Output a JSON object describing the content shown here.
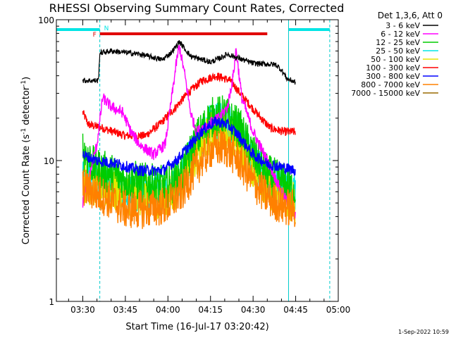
{
  "chart_data": {
    "type": "line",
    "title": "RHESSI Observing Summary Count Rates, Corrected",
    "xlabel": "Start Time (16-Jul-17 03:20:42)",
    "ylabel_main": "Corrected Count Rate (s",
    "ylabel_sup": "-1",
    "ylabel_tail": " detector",
    "ylabel_end": ")",
    "y_scale": "log",
    "ylim": [
      1,
      100
    ],
    "xlim_minutes": [
      "03:20:42",
      "05:00:00"
    ],
    "x_ticks": [
      "03:30",
      "03:45",
      "04:00",
      "04:15",
      "04:30",
      "04:45",
      "05:00"
    ],
    "y_ticks": [
      "1",
      "10",
      "100"
    ],
    "legend_header": "Det 1,3,6, Att 0",
    "legend_position": "right",
    "timestamp": "1-Sep-2022 10:59",
    "flags": [
      {
        "label": "N",
        "color": "#00e5e5",
        "segments": [
          [
            "03:20:42",
            "03:36:00"
          ],
          [
            "04:42:30",
            "04:57:00"
          ]
        ]
      },
      {
        "label": "F",
        "color": "#e00000",
        "segments": [
          [
            "03:36:00",
            "04:35:00"
          ]
        ]
      }
    ],
    "night_markers": [
      "03:36:00",
      "04:42:30",
      "04:57:00"
    ],
    "series": [
      {
        "name": "3 - 6 keV",
        "color": "#000000",
        "points": [
          [
            "03:30:00",
            37
          ],
          [
            "03:35:30",
            37
          ],
          [
            "03:36:00",
            58
          ],
          [
            "03:40:00",
            60
          ],
          [
            "03:50:00",
            57
          ],
          [
            "03:58:00",
            52
          ],
          [
            "04:01:00",
            58
          ],
          [
            "04:03:00",
            65
          ],
          [
            "04:04:00",
            70
          ],
          [
            "04:06:00",
            62
          ],
          [
            "04:08:00",
            55
          ],
          [
            "04:15:00",
            50
          ],
          [
            "04:18:00",
            53
          ],
          [
            "04:21:00",
            57
          ],
          [
            "04:24:00",
            54
          ],
          [
            "04:30:00",
            49
          ],
          [
            "04:38:00",
            48
          ],
          [
            "04:40:00",
            44
          ],
          [
            "04:42:00",
            38
          ],
          [
            "04:45:00",
            36
          ]
        ]
      },
      {
        "name": "6 - 12 keV",
        "color": "#ff00ff",
        "points": [
          [
            "03:30:00",
            5
          ],
          [
            "03:31:00",
            6
          ],
          [
            "03:35:00",
            13
          ],
          [
            "03:37:00",
            28
          ],
          [
            "03:40:00",
            24
          ],
          [
            "03:44:00",
            22
          ],
          [
            "03:47:00",
            16
          ],
          [
            "03:50:00",
            13
          ],
          [
            "03:55:00",
            11
          ],
          [
            "03:59:00",
            13
          ],
          [
            "04:01:00",
            25
          ],
          [
            "04:03:00",
            50
          ],
          [
            "04:04:00",
            65
          ],
          [
            "04:06:00",
            40
          ],
          [
            "04:08:00",
            22
          ],
          [
            "04:10:00",
            16
          ],
          [
            "04:14:00",
            18
          ],
          [
            "04:18:00",
            20
          ],
          [
            "04:21:00",
            24
          ],
          [
            "04:23:00",
            40
          ],
          [
            "04:24:00",
            62
          ],
          [
            "04:26:00",
            28
          ],
          [
            "04:30:00",
            16
          ],
          [
            "04:35:00",
            10
          ],
          [
            "04:40:00",
            6
          ],
          [
            "04:45:00",
            4
          ]
        ]
      },
      {
        "name": "12 - 25 keV",
        "color": "#00cc00",
        "points": [
          [
            "03:30:00",
            12
          ],
          [
            "03:34:00",
            9
          ],
          [
            "03:40:00",
            8
          ],
          [
            "03:50:00",
            7
          ],
          [
            "04:00:00",
            6.5
          ],
          [
            "04:05:00",
            8
          ],
          [
            "04:10:00",
            14
          ],
          [
            "04:15:00",
            20
          ],
          [
            "04:20:00",
            21
          ],
          [
            "04:25:00",
            17
          ],
          [
            "04:30:00",
            11
          ],
          [
            "04:35:00",
            8
          ],
          [
            "04:40:00",
            7
          ],
          [
            "04:45:00",
            6
          ]
        ]
      },
      {
        "name": "25 - 50 keV",
        "color": "#00e5e5",
        "points": [
          [
            "03:30:00",
            7.5
          ],
          [
            "03:40:00",
            6.5
          ],
          [
            "03:50:00",
            6
          ],
          [
            "04:00:00",
            6
          ],
          [
            "04:05:00",
            8
          ],
          [
            "04:10:00",
            13
          ],
          [
            "04:15:00",
            19
          ],
          [
            "04:20:00",
            20
          ],
          [
            "04:25:00",
            15
          ],
          [
            "04:30:00",
            10
          ],
          [
            "04:35:00",
            7.5
          ],
          [
            "04:40:00",
            6.5
          ],
          [
            "04:45:00",
            6
          ]
        ]
      },
      {
        "name": "50 - 100 keV",
        "color": "#e5e500",
        "points": [
          [
            "03:30:00",
            7
          ],
          [
            "03:40:00",
            6
          ],
          [
            "03:50:00",
            5.5
          ],
          [
            "04:00:00",
            5.5
          ],
          [
            "04:05:00",
            7
          ],
          [
            "04:10:00",
            11
          ],
          [
            "04:15:00",
            16
          ],
          [
            "04:20:00",
            17
          ],
          [
            "04:25:00",
            13
          ],
          [
            "04:30:00",
            9
          ],
          [
            "04:35:00",
            6.5
          ],
          [
            "04:40:00",
            5.5
          ],
          [
            "04:45:00",
            5
          ]
        ]
      },
      {
        "name": "100 - 300 keV",
        "color": "#ff0000",
        "points": [
          [
            "03:30:00",
            22
          ],
          [
            "03:32:00",
            18
          ],
          [
            "03:37:00",
            17
          ],
          [
            "03:45:00",
            15
          ],
          [
            "03:52:00",
            15
          ],
          [
            "03:57:00",
            18
          ],
          [
            "04:02:00",
            23
          ],
          [
            "04:07:00",
            30
          ],
          [
            "04:12:00",
            37
          ],
          [
            "04:17:00",
            40
          ],
          [
            "04:22:00",
            37
          ],
          [
            "04:26:00",
            29
          ],
          [
            "04:31:00",
            22
          ],
          [
            "04:36:00",
            17
          ],
          [
            "04:41:00",
            16
          ],
          [
            "04:45:00",
            16
          ]
        ]
      },
      {
        "name": "300 - 800 keV",
        "color": "#0000ff",
        "points": [
          [
            "03:30:00",
            11
          ],
          [
            "03:35:00",
            10
          ],
          [
            "03:42:00",
            9.5
          ],
          [
            "03:50:00",
            8.5
          ],
          [
            "03:58:00",
            8.5
          ],
          [
            "04:03:00",
            10
          ],
          [
            "04:08:00",
            13
          ],
          [
            "04:13:00",
            17
          ],
          [
            "04:17:00",
            19
          ],
          [
            "04:21:00",
            18
          ],
          [
            "04:25:00",
            15
          ],
          [
            "04:30:00",
            11
          ],
          [
            "04:35:00",
            9.5
          ],
          [
            "04:40:00",
            9
          ],
          [
            "04:45:00",
            8.5
          ]
        ]
      },
      {
        "name": "800 - 7000 keV",
        "color": "#ff8000",
        "points": [
          [
            "03:30:00",
            6.5
          ],
          [
            "03:38:00",
            5.5
          ],
          [
            "03:45:00",
            4.5
          ],
          [
            "03:52:00",
            4.5
          ],
          [
            "04:00:00",
            4.8
          ],
          [
            "04:05:00",
            6
          ],
          [
            "04:10:00",
            9
          ],
          [
            "04:15:00",
            12
          ],
          [
            "04:20:00",
            12.5
          ],
          [
            "04:25:00",
            10
          ],
          [
            "04:30:00",
            7
          ],
          [
            "04:35:00",
            5.5
          ],
          [
            "04:40:00",
            4.8
          ],
          [
            "04:45:00",
            4.5
          ]
        ]
      },
      {
        "name": "7000 - 15000 keV",
        "color": "#9a6a00",
        "points": []
      }
    ]
  }
}
